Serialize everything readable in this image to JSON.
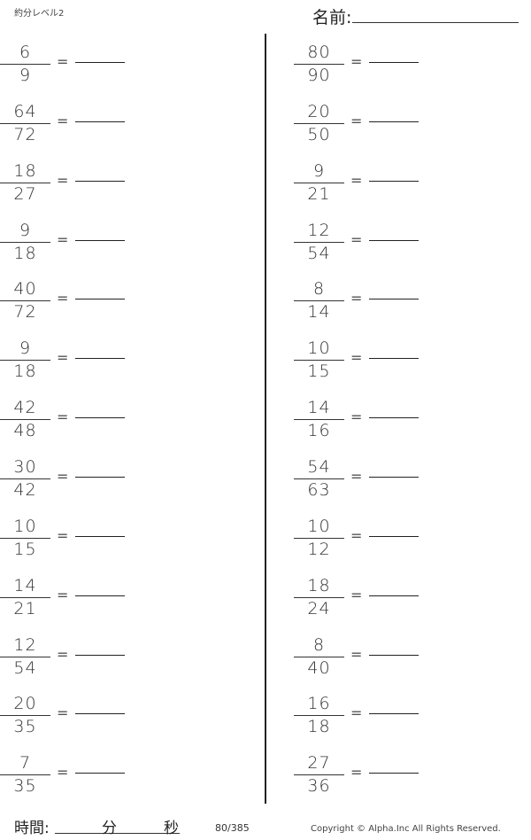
{
  "header": {
    "title": "約分レベル2",
    "name_label": "名前:"
  },
  "left_problems": [
    {
      "numerator": "6",
      "denominator": "9"
    },
    {
      "numerator": "64",
      "denominator": "72"
    },
    {
      "numerator": "18",
      "denominator": "27"
    },
    {
      "numerator": "9",
      "denominator": "18"
    },
    {
      "numerator": "40",
      "denominator": "72"
    },
    {
      "numerator": "9",
      "denominator": "18"
    },
    {
      "numerator": "42",
      "denominator": "48"
    },
    {
      "numerator": "30",
      "denominator": "42"
    },
    {
      "numerator": "10",
      "denominator": "15"
    },
    {
      "numerator": "14",
      "denominator": "21"
    },
    {
      "numerator": "12",
      "denominator": "54"
    },
    {
      "numerator": "20",
      "denominator": "35"
    },
    {
      "numerator": "7",
      "denominator": "35"
    }
  ],
  "right_problems": [
    {
      "numerator": "80",
      "denominator": "90"
    },
    {
      "numerator": "20",
      "denominator": "50"
    },
    {
      "numerator": "9",
      "denominator": "21"
    },
    {
      "numerator": "12",
      "denominator": "54"
    },
    {
      "numerator": "8",
      "denominator": "14"
    },
    {
      "numerator": "10",
      "denominator": "15"
    },
    {
      "numerator": "14",
      "denominator": "16"
    },
    {
      "numerator": "54",
      "denominator": "63"
    },
    {
      "numerator": "10",
      "denominator": "12"
    },
    {
      "numerator": "18",
      "denominator": "24"
    },
    {
      "numerator": "8",
      "denominator": "40"
    },
    {
      "numerator": "16",
      "denominator": "18"
    },
    {
      "numerator": "27",
      "denominator": "36"
    }
  ],
  "equals_sign": "=",
  "footer": {
    "time_label": "時間:",
    "minutes_label": "分",
    "seconds_label": "秒",
    "page": "80/385",
    "copyright": "Copyright ©  Alpha.Inc All Rights Reserved."
  }
}
